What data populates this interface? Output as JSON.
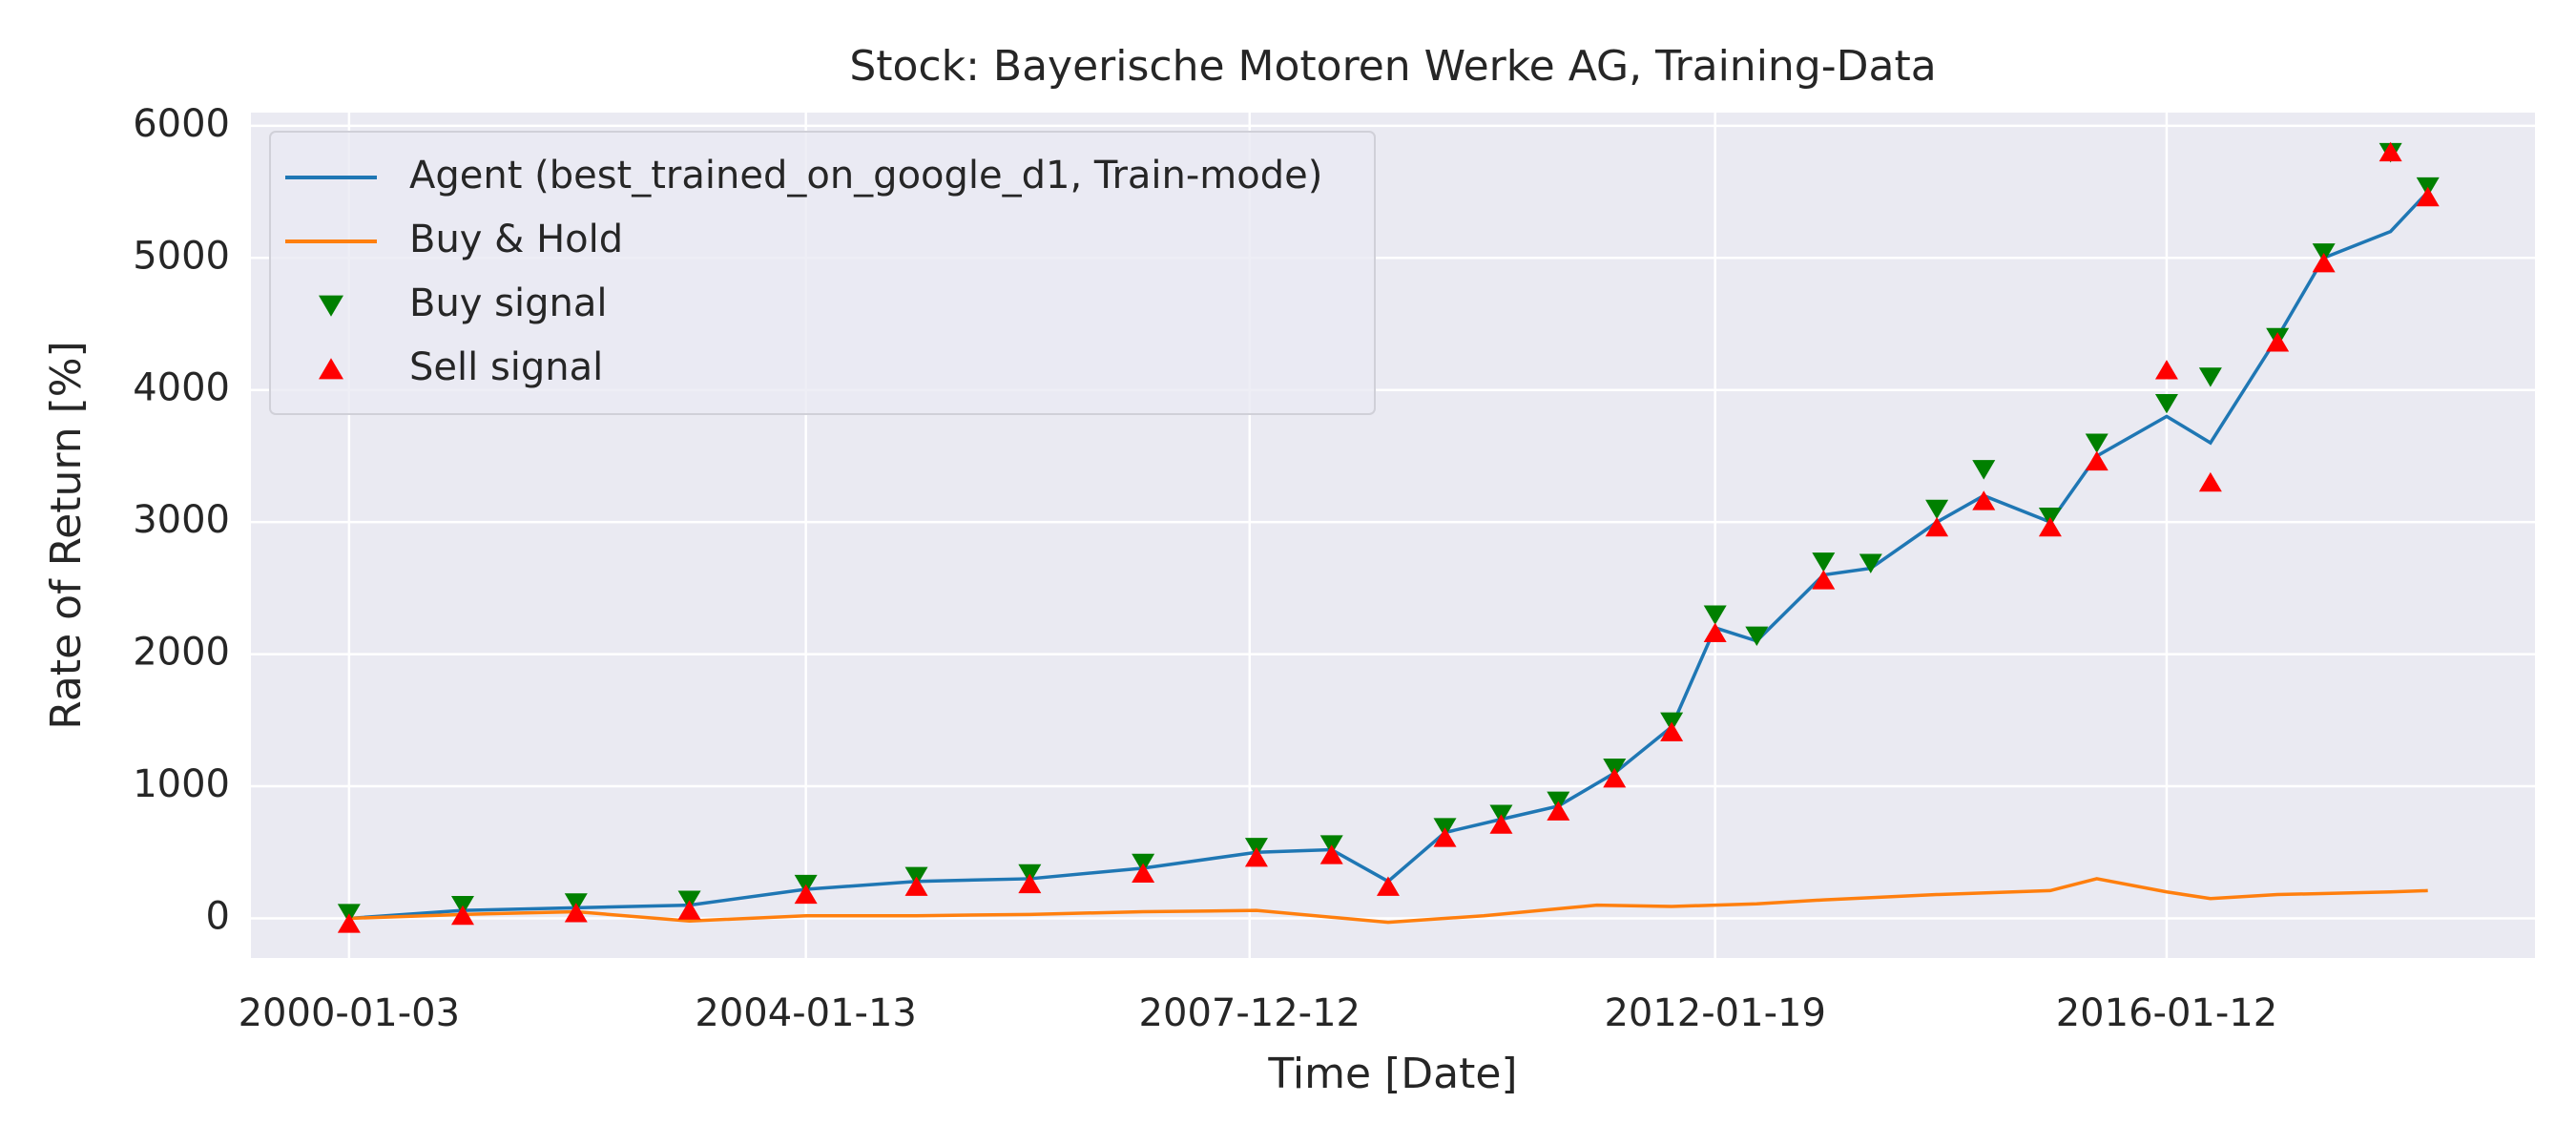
{
  "chart_data": {
    "type": "line",
    "title": "Stock: Bayerische Motoren Werke AG, Training-Data",
    "x_label": "Time [Date]",
    "y_label": "Rate of Return [%]",
    "xlim": [
      "1999-02-21",
      "2019-04-12"
    ],
    "xticks": [
      "2000-01-03",
      "2004-01-13",
      "2007-12-12",
      "2012-01-19",
      "2016-01-12"
    ],
    "ylim": [
      -300,
      6100
    ],
    "yticks": [
      0,
      1000,
      2000,
      3000,
      4000,
      5000,
      6000
    ],
    "grid": true,
    "legend_loc": "upper left",
    "series": [
      {
        "name": "Agent (best_trained_on_google_d1, Train-mode)",
        "color": "#1f77b4",
        "kind": "line",
        "x": [
          "2000-01-03",
          "2001-01-03",
          "2002-01-03",
          "2003-01-03",
          "2004-01-13",
          "2005-01-03",
          "2006-01-03",
          "2007-01-03",
          "2008-01-03",
          "2008-09-01",
          "2009-03-02",
          "2009-09-01",
          "2010-03-01",
          "2010-09-01",
          "2011-03-01",
          "2011-09-01",
          "2012-01-19",
          "2012-06-01",
          "2013-01-02",
          "2013-06-03",
          "2014-01-02",
          "2014-06-02",
          "2015-01-02",
          "2015-06-01",
          "2016-01-12",
          "2016-06-01",
          "2017-01-03",
          "2017-06-01",
          "2018-01-02",
          "2018-05-02"
        ],
        "values": [
          0,
          60,
          80,
          100,
          220,
          280,
          300,
          380,
          500,
          520,
          280,
          650,
          750,
          850,
          1100,
          1450,
          2200,
          2100,
          2600,
          2650,
          3000,
          3200,
          3000,
          3500,
          3800,
          3600,
          4400,
          5000,
          5200,
          5500
        ]
      },
      {
        "name": "Buy & Hold",
        "color": "#ff7f0e",
        "kind": "line",
        "x": [
          "2000-01-03",
          "2001-01-03",
          "2002-01-03",
          "2003-01-03",
          "2004-01-13",
          "2005-01-03",
          "2006-01-03",
          "2007-01-03",
          "2008-01-03",
          "2009-03-02",
          "2010-01-04",
          "2011-01-03",
          "2011-09-01",
          "2012-06-01",
          "2013-01-02",
          "2014-01-02",
          "2015-01-02",
          "2015-06-01",
          "2016-01-12",
          "2016-06-01",
          "2017-01-03",
          "2018-01-02",
          "2018-05-02"
        ],
        "values": [
          0,
          30,
          50,
          -20,
          20,
          20,
          30,
          50,
          60,
          -30,
          20,
          100,
          90,
          110,
          140,
          180,
          210,
          300,
          200,
          150,
          180,
          200,
          210
        ]
      },
      {
        "name": "Buy signal",
        "color": "#008000",
        "kind": "scatter",
        "marker": "down",
        "x": [
          "2000-01-03",
          "2001-01-03",
          "2002-01-03",
          "2003-01-03",
          "2004-01-13",
          "2005-01-03",
          "2006-01-03",
          "2007-01-03",
          "2008-01-03",
          "2008-09-01",
          "2009-09-01",
          "2010-03-01",
          "2010-09-01",
          "2011-03-01",
          "2011-09-01",
          "2012-01-19",
          "2012-06-01",
          "2013-01-02",
          "2013-06-03",
          "2014-01-02",
          "2014-06-02",
          "2015-01-02",
          "2015-06-01",
          "2016-01-12",
          "2016-06-01",
          "2017-01-03",
          "2017-06-01",
          "2018-01-02",
          "2018-05-02"
        ],
        "values": [
          40,
          100,
          120,
          140,
          260,
          320,
          340,
          420,
          540,
          560,
          690,
          790,
          890,
          1140,
          1490,
          2300,
          2140,
          2700,
          2690,
          3100,
          3400,
          3040,
          3600,
          3900,
          4100,
          4400,
          5040,
          5800,
          5540
        ]
      },
      {
        "name": "Sell signal",
        "color": "#ff0000",
        "kind": "scatter",
        "marker": "up",
        "x": [
          "2000-01-03",
          "2001-01-03",
          "2002-01-03",
          "2003-01-03",
          "2004-01-13",
          "2005-01-03",
          "2006-01-03",
          "2007-01-03",
          "2008-01-03",
          "2008-09-01",
          "2009-03-02",
          "2009-09-01",
          "2010-03-01",
          "2010-09-01",
          "2011-03-01",
          "2011-09-01",
          "2012-01-19",
          "2013-01-02",
          "2014-01-02",
          "2014-06-02",
          "2015-01-02",
          "2015-06-01",
          "2016-01-12",
          "2016-06-01",
          "2017-01-03",
          "2017-06-01",
          "2018-01-02",
          "2018-05-02"
        ],
        "values": [
          -40,
          20,
          40,
          60,
          180,
          240,
          260,
          340,
          460,
          480,
          240,
          610,
          710,
          810,
          1060,
          1410,
          2160,
          2560,
          2960,
          3160,
          2960,
          3460,
          4150,
          3300,
          4360,
          4960,
          5800,
          5460
        ]
      }
    ]
  }
}
